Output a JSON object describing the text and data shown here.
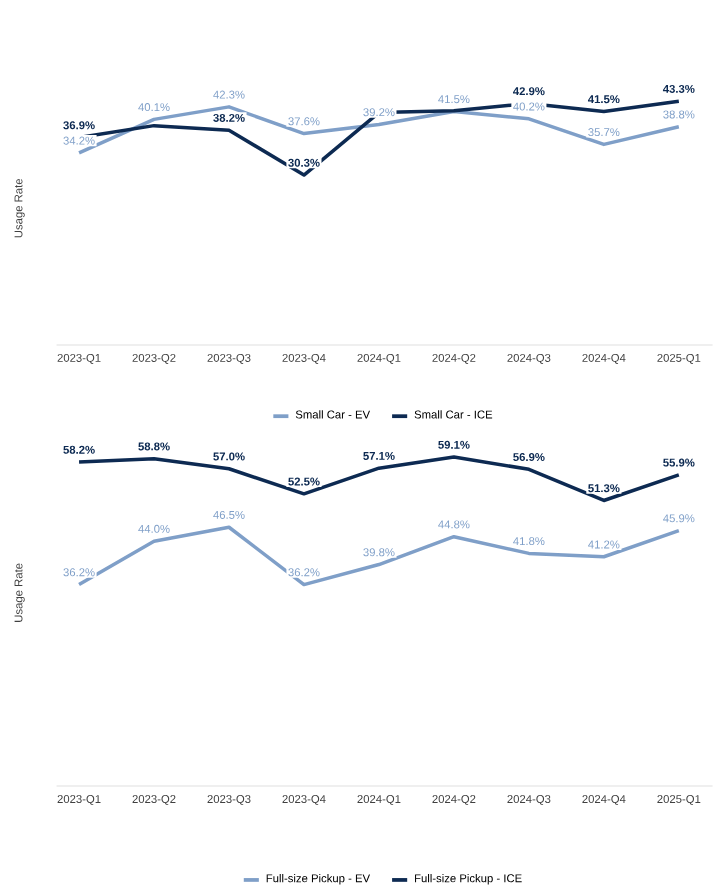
{
  "chart_data": [
    {
      "type": "line",
      "ylabel": "Usage Rate",
      "categories": [
        "2023-Q1",
        "2023-Q2",
        "2023-Q3",
        "2023-Q4",
        "2024-Q1",
        "2024-Q2",
        "2024-Q3",
        "2024-Q4",
        "2025-Q1"
      ],
      "tick_labels": "x",
      "legend": "bottom",
      "series": [
        {
          "name": "Small Car - EV",
          "color": "#7f9fc8",
          "values": [
            34.2,
            40.1,
            42.3,
            37.6,
            39.2,
            41.5,
            40.2,
            35.7,
            38.8
          ],
          "value_labels": [
            "34.2%",
            "40.1%",
            "42.3%",
            "37.6%",
            "39.2%",
            "41.5%",
            "40.2%",
            "35.7%",
            "38.8%"
          ]
        },
        {
          "name": "Small Car - ICE",
          "color": "#0d2a52",
          "values": [
            36.9,
            39.0,
            38.2,
            30.3,
            41.3,
            41.6,
            42.9,
            41.5,
            43.3
          ],
          "value_labels": [
            "36.9%",
            null,
            "38.2%",
            "30.3%",
            null,
            null,
            "42.9%",
            "41.5%",
            "43.3%"
          ]
        }
      ]
    },
    {
      "type": "line",
      "ylabel": "Usage Rate",
      "categories": [
        "2023-Q1",
        "2023-Q2",
        "2023-Q3",
        "2023-Q4",
        "2024-Q1",
        "2024-Q2",
        "2024-Q3",
        "2024-Q4",
        "2025-Q1"
      ],
      "tick_labels": "x",
      "legend": "bottom",
      "series": [
        {
          "name": "Full-size Pickup - EV",
          "color": "#7f9fc8",
          "values": [
            36.2,
            44.0,
            46.5,
            36.2,
            39.8,
            44.8,
            41.8,
            41.2,
            45.9
          ],
          "value_labels": [
            "36.2%",
            "44.0%",
            "46.5%",
            "36.2%",
            "39.8%",
            "44.8%",
            "41.8%",
            "41.2%",
            "45.9%"
          ]
        },
        {
          "name": "Full-size Pickup - ICE",
          "color": "#0d2a52",
          "values": [
            58.2,
            58.8,
            57.0,
            52.5,
            57.1,
            59.1,
            56.9,
            51.3,
            55.9
          ],
          "value_labels": [
            "58.2%",
            "58.8%",
            "57.0%",
            "52.5%",
            "57.1%",
            "59.1%",
            "56.9%",
            "51.3%",
            "55.9%"
          ]
        }
      ]
    }
  ]
}
